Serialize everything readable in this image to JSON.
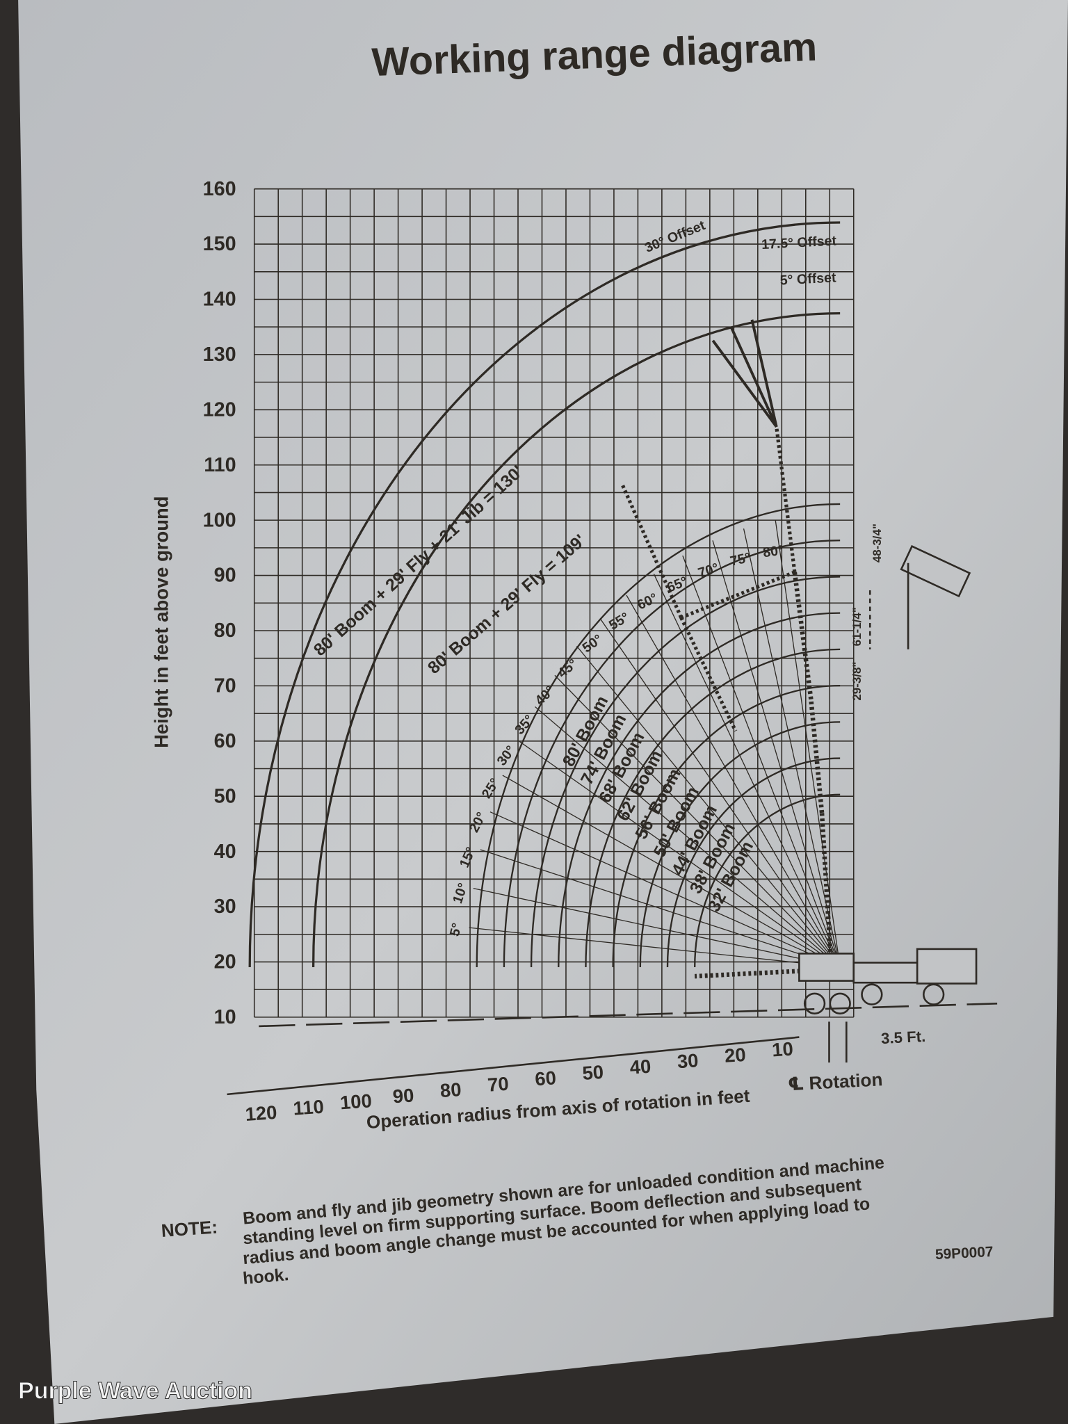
{
  "title": "Working range diagram",
  "y_axis_label": "Height in feet above ground",
  "y_ticks": [
    160,
    150,
    140,
    130,
    120,
    110,
    100,
    90,
    80,
    70,
    60,
    50,
    40,
    30,
    20,
    10
  ],
  "x_axis_label": "Operation radius from axis of rotation in feet",
  "x_ticks": [
    120,
    110,
    100,
    90,
    80,
    70,
    60,
    50,
    40,
    30,
    20,
    10
  ],
  "rotation_label": "℄ Rotation",
  "offset_distance": "3.5 Ft.",
  "booms": [
    "80' Boom",
    "74' Boom",
    "68' Boom",
    "62' Boom",
    "56' Boom",
    "50' Boom",
    "44' Boom",
    "38' Boom",
    "32' Boom"
  ],
  "fly_labels": [
    "80' Boom + 29' Fly + 21' Jib = 130'",
    "80' Boom + 29' Fly = 109'"
  ],
  "angles": [
    "5°",
    "10°",
    "15°",
    "20°",
    "25°",
    "30°",
    "35°",
    "40°",
    "45°",
    "50°",
    "55°",
    "60°",
    "65°",
    "70°",
    "75°",
    "80°"
  ],
  "offsets": [
    "30° Offset",
    "17.5° Offset",
    "5° Offset"
  ],
  "hook_dims": [
    "48-3/4\"",
    "61-1/4\"",
    "29-3/8\""
  ],
  "note": {
    "label": "NOTE:",
    "lines": [
      "Boom and fly and jib geometry shown are for unloaded condition and machine",
      "standing level on firm supporting surface. Boom deflection and subsequent",
      "radius and boom angle change must be accounted for when applying load to",
      "hook."
    ]
  },
  "code": "59P0007",
  "watermark": "Purple Wave Auction"
}
